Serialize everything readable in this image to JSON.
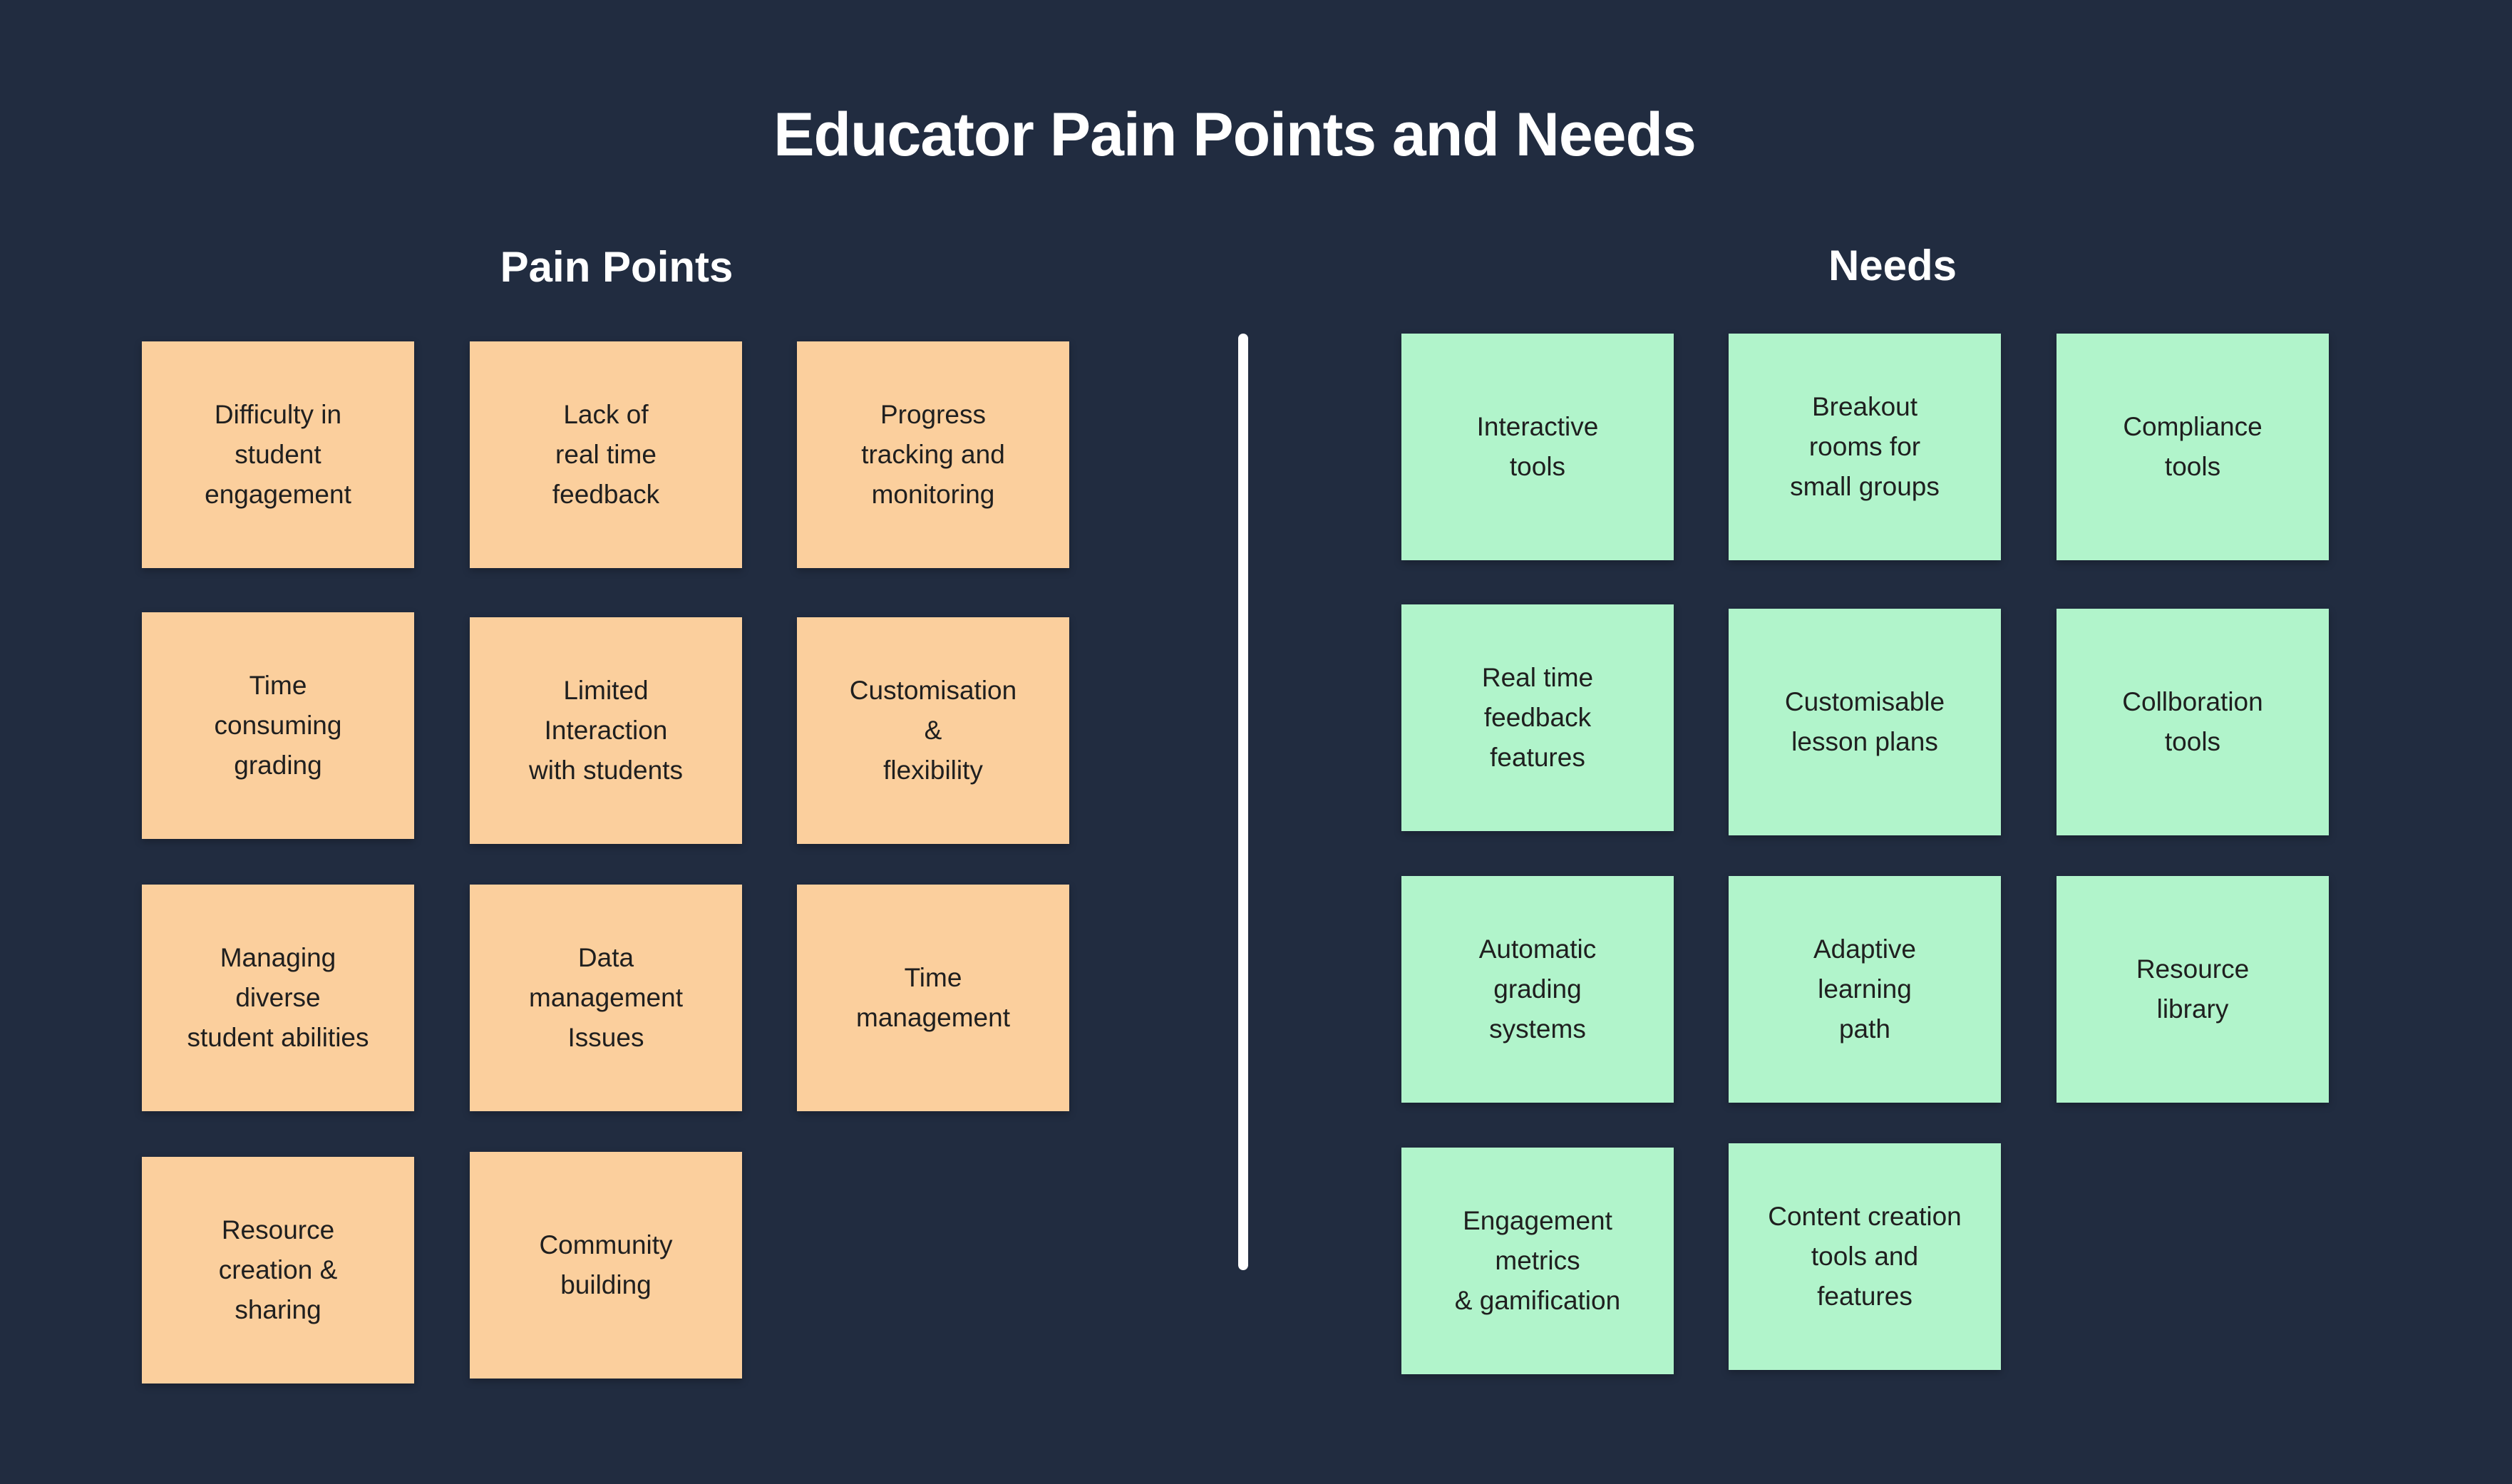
{
  "title": "Educator Pain Points and Needs",
  "pain_points": {
    "heading": "Pain Points",
    "items": [
      "Difficulty in\nstudent\nengagement",
      "Lack of\nreal time\nfeedback",
      "Progress\ntracking and\nmonitoring",
      "Time\nconsuming\ngrading",
      "Limited\nInteraction\nwith students",
      "Customisation\n&\nflexibility",
      "Managing\ndiverse\nstudent abilities",
      "Data\nmanagement\nIssues",
      "Time\nmanagement",
      "Resource\ncreation &\nsharing",
      "Community\nbuilding"
    ]
  },
  "needs": {
    "heading": "Needs",
    "items": [
      "Interactive\ntools",
      "Breakout\nrooms for\nsmall groups",
      "Compliance\ntools",
      "Real time\nfeedback\nfeatures",
      "Customisable\nlesson plans",
      "Collboration\ntools",
      "Automatic\ngrading\nsystems",
      "Adaptive\nlearning\npath",
      "Resource\nlibrary",
      "Engagement\nmetrics\n& gamification",
      "Content creation\ntools and\nfeatures"
    ]
  },
  "colors": {
    "background": "#212c40",
    "pain_note": "#fbcf9d",
    "need_note": "#b1f4cb",
    "divider": "#ffffff"
  }
}
